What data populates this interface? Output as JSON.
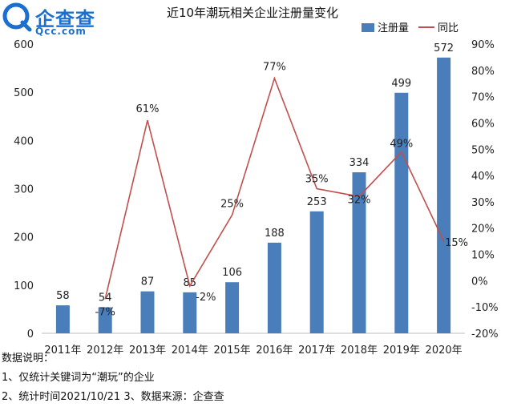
{
  "brand": {
    "name": "企查查",
    "site": "Qcc.com"
  },
  "notes": {
    "heading": "数据说明：",
    "line1": "1、仅统计关键词为“潮玩”的企业",
    "line2": "2、统计时间2021/10/21   3、数据来源：企查查"
  },
  "chart_data": {
    "type": "bar",
    "title": "近10年潮玩相关企业注册量变化",
    "categories": [
      "2011年",
      "2012年",
      "2013年",
      "2014年",
      "2015年",
      "2016年",
      "2017年",
      "2018年",
      "2019年",
      "2020年"
    ],
    "series": [
      {
        "name": "注册量",
        "kind": "bar",
        "axis": "left",
        "color": "#4a7ebb",
        "values": [
          58,
          54,
          87,
          85,
          106,
          188,
          253,
          334,
          499,
          572
        ],
        "labels": [
          "58",
          "54",
          "87",
          "85",
          "106",
          "188",
          "253",
          "334",
          "499",
          "572"
        ]
      },
      {
        "name": "同比",
        "kind": "line",
        "axis": "right",
        "color": "#c0504d",
        "values": [
          null,
          -7,
          61,
          -2,
          25,
          77,
          35,
          32,
          49,
          15
        ],
        "labels": [
          "",
          "-7%",
          "61%",
          "-2%",
          "25%",
          "77%",
          "35%",
          "32%",
          "49%",
          "15%"
        ]
      }
    ],
    "left_axis": {
      "ylim": [
        0,
        600
      ],
      "ticks": [
        "0",
        "100",
        "200",
        "300",
        "400",
        "500",
        "600"
      ]
    },
    "right_axis": {
      "ylim": [
        -20,
        90
      ],
      "ticks": [
        "-20%",
        "-10%",
        "0%",
        "10%",
        "20%",
        "30%",
        "40%",
        "50%",
        "60%",
        "70%",
        "80%",
        "90%"
      ]
    },
    "legend": {
      "position": "top-right"
    }
  }
}
